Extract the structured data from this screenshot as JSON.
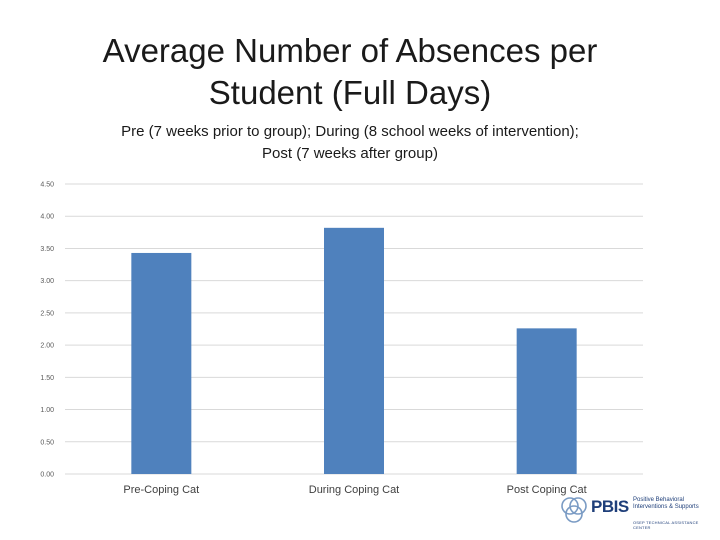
{
  "chart_data": {
    "type": "bar",
    "title_lines": [
      "Average Number of Absences per",
      "Student (Full Days)"
    ],
    "subtitle_lines": [
      "Pre (7 weeks prior to group); During (8 school weeks of intervention);",
      "Post (7 weeks after group)"
    ],
    "categories": [
      "Pre-Coping Cat",
      "During Coping Cat",
      "Post Coping Cat"
    ],
    "values": [
      3.43,
      3.82,
      2.26
    ],
    "yticks": [
      "0.00",
      "0.50",
      "1.00",
      "1.50",
      "2.00",
      "2.50",
      "3.00",
      "3.50",
      "4.00",
      "4.50"
    ],
    "ylim": [
      0,
      4.5
    ],
    "grid": true,
    "legend": "none",
    "bar_color": "#4f81bd",
    "grid_color": "#d9d9d9"
  },
  "logo": {
    "word": "PBIS",
    "tagline": [
      "Positive Behavioral",
      "Interventions & Supports"
    ],
    "subline": "OSEP TECHNICAL ASSISTANCE CENTER",
    "icon": "interlocking-circles-icon",
    "colors": {
      "primary": "#1f3f7a",
      "circle": "#7a9bc4"
    }
  }
}
